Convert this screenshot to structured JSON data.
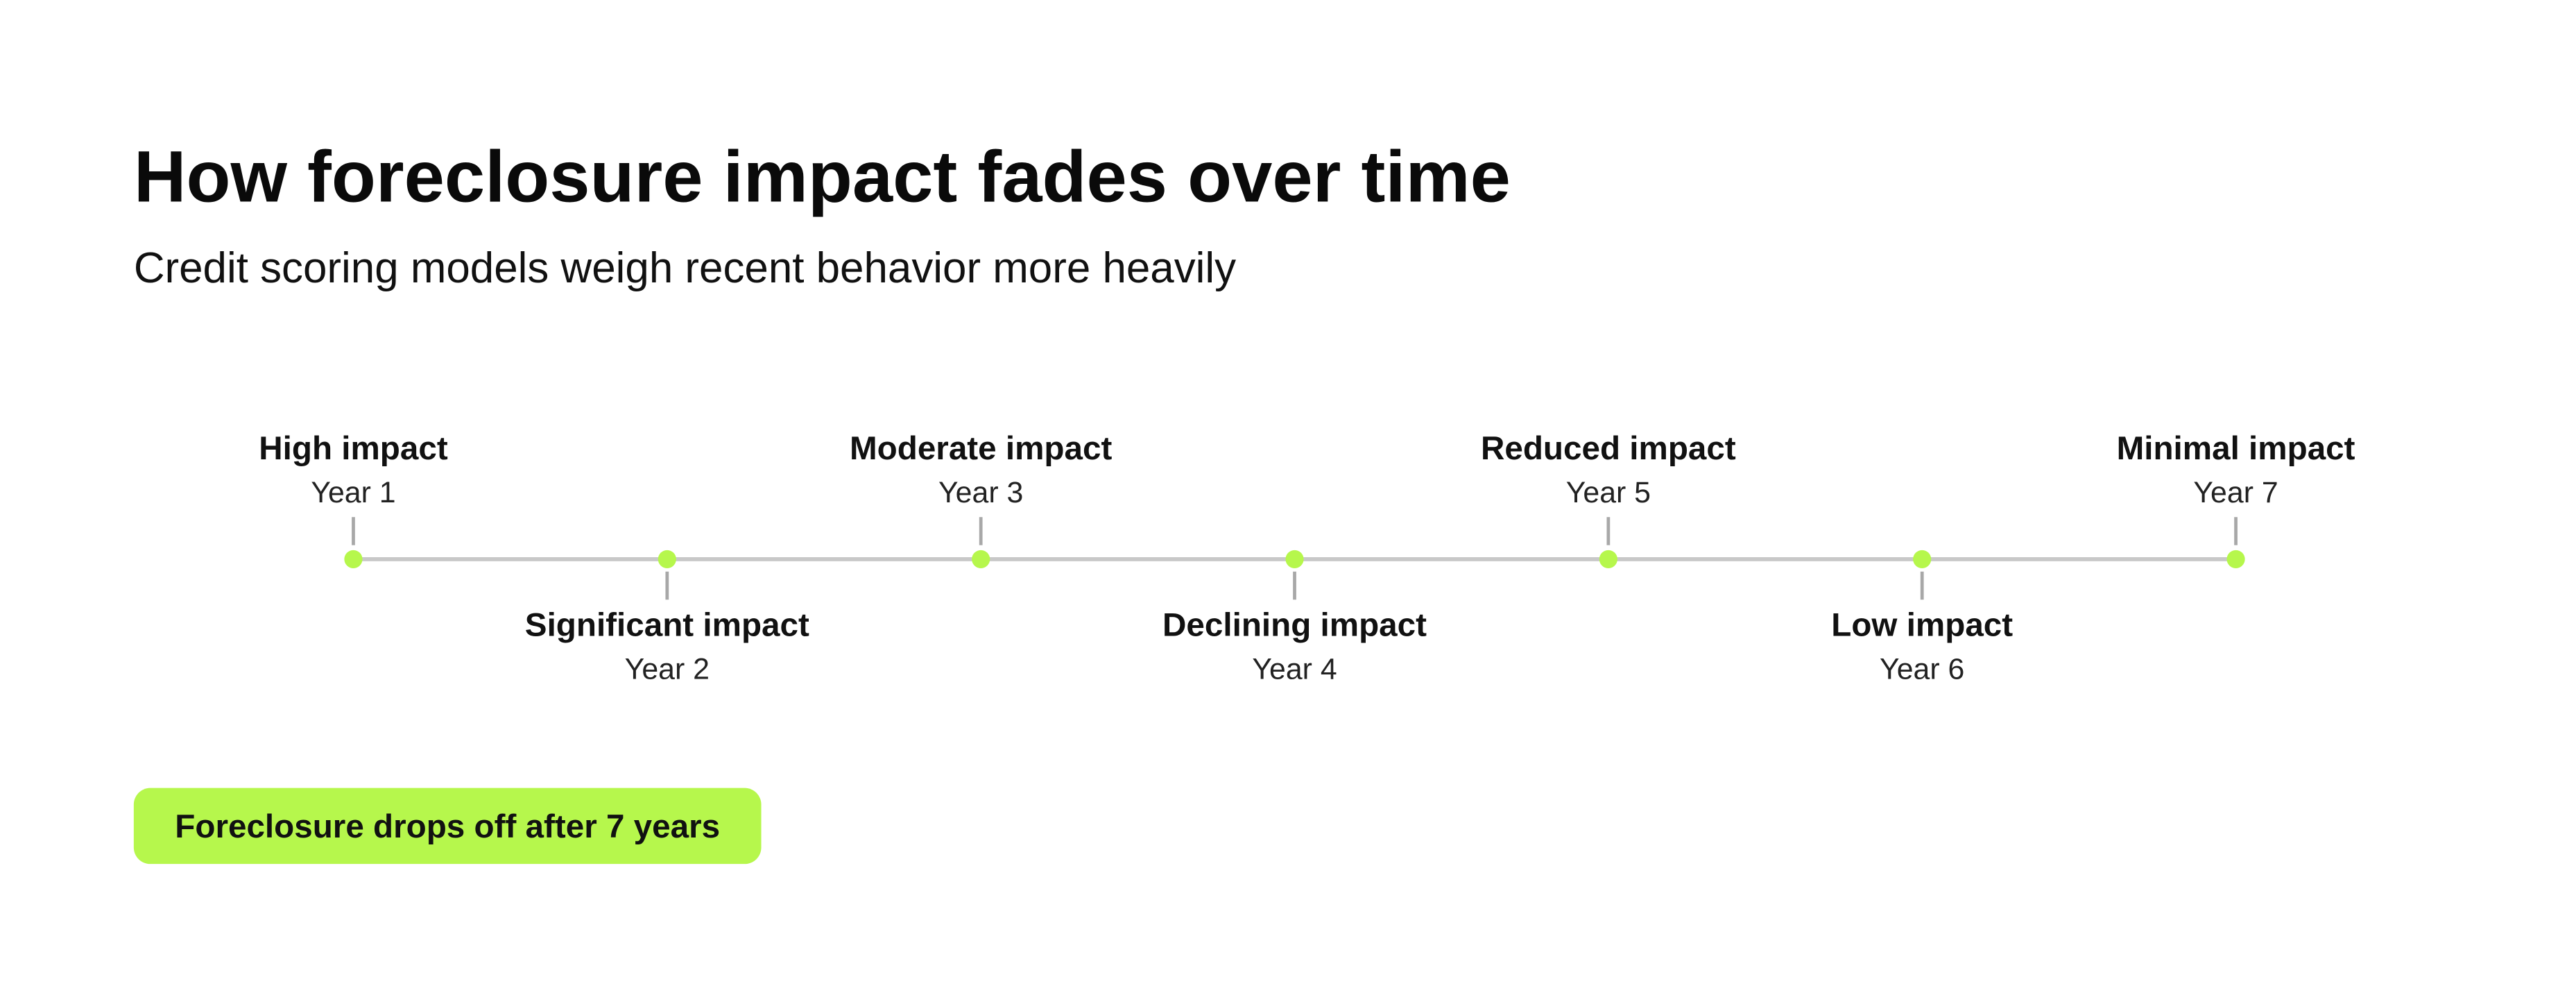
{
  "title": "How foreclosure impact fades over time",
  "subtitle": "Credit scoring models weigh recent behavior more heavily",
  "events": [
    {
      "label": "High impact",
      "year": "Year 1"
    },
    {
      "label": "Significant impact",
      "year": "Year 2"
    },
    {
      "label": "Moderate impact",
      "year": "Year 3"
    },
    {
      "label": "Declining impact",
      "year": "Year 4"
    },
    {
      "label": "Reduced impact",
      "year": "Year 5"
    },
    {
      "label": "Low impact",
      "year": "Year 6"
    },
    {
      "label": "Minimal impact",
      "year": "Year 7"
    }
  ],
  "note": "Foreclosure drops off after 7 years"
}
